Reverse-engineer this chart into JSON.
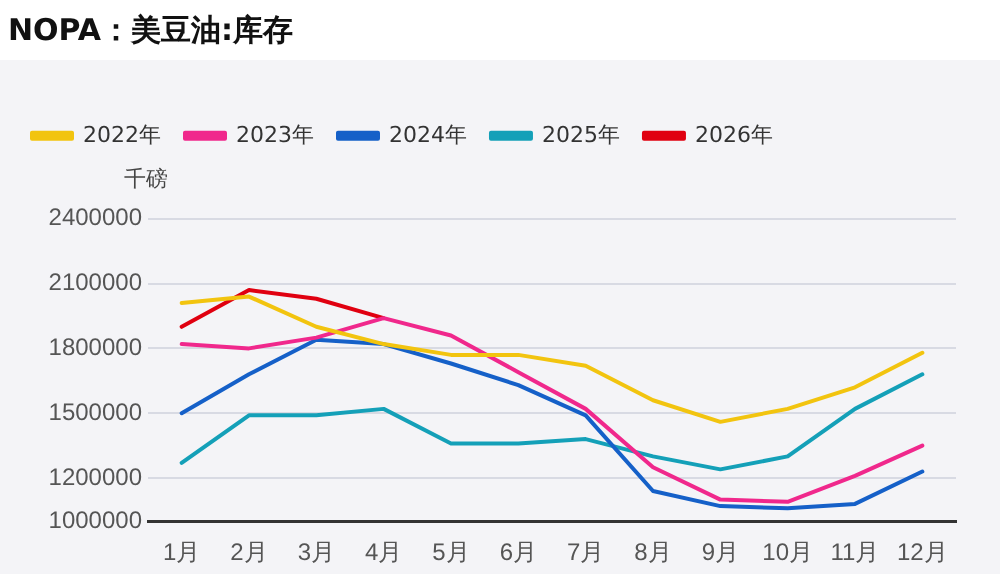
{
  "chart_data": {
    "type": "line",
    "title": "NOPA：美豆油:库存",
    "ylabel": "千磅",
    "categories": [
      "1月",
      "2月",
      "3月",
      "4月",
      "5月",
      "6月",
      "7月",
      "8月",
      "9月",
      "10月",
      "11月",
      "12月"
    ],
    "series": [
      {
        "name": "2022年",
        "color": "#f2c40f",
        "values": [
          2010000,
          2040000,
          1900000,
          1820000,
          1770000,
          1770000,
          1720000,
          1560000,
          1460000,
          1520000,
          1620000,
          1780000
        ]
      },
      {
        "name": "2023年",
        "color": "#f0288c",
        "values": [
          1820000,
          1800000,
          1850000,
          1940000,
          1860000,
          1690000,
          1520000,
          1250000,
          1100000,
          1090000,
          1210000,
          1350000
        ]
      },
      {
        "name": "2024年",
        "color": "#1560c8",
        "values": [
          1500000,
          1680000,
          1840000,
          1820000,
          1730000,
          1630000,
          1490000,
          1140000,
          1070000,
          1060000,
          1080000,
          1230000
        ]
      },
      {
        "name": "2025年",
        "color": "#14a0b8",
        "values": [
          1270000,
          1490000,
          1490000,
          1520000,
          1360000,
          1360000,
          1380000,
          1300000,
          1240000,
          1300000,
          1520000,
          1680000
        ]
      },
      {
        "name": "2026年",
        "color": "#e00010",
        "values": [
          1900000,
          2070000,
          2030000,
          1940000,
          null,
          null,
          null,
          null,
          null,
          null,
          null,
          null
        ]
      }
    ],
    "ylim": [
      1000000,
      2400000
    ],
    "yticks": [
      1000000,
      1200000,
      1500000,
      1800000,
      2100000,
      2400000
    ],
    "grid": "y",
    "legend": "top left",
    "marker": "none",
    "line_style": "solid"
  }
}
